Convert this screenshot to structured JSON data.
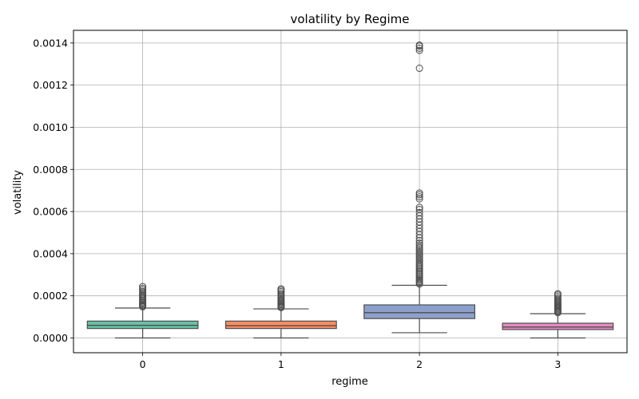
{
  "chart_data": {
    "type": "box",
    "title": "volatility by Regime",
    "xlabel": "regime",
    "ylabel": "volatility",
    "ylim": [
      -7e-05,
      0.00146
    ],
    "yticks": [
      0.0,
      0.0002,
      0.0004,
      0.0006,
      0.0008,
      0.001,
      0.0012,
      0.0014
    ],
    "ytick_labels": [
      "0.0000",
      "0.0002",
      "0.0004",
      "0.0006",
      "0.0008",
      "0.0010",
      "0.0012",
      "0.0014"
    ],
    "grid": true,
    "categories": [
      "0",
      "1",
      "2",
      "3"
    ],
    "boxes": [
      {
        "category": "0",
        "color": "#66c2a5",
        "whisker_low": 0.0,
        "q1": 4.5e-05,
        "median": 6e-05,
        "q3": 8e-05,
        "whisker_high": 0.000142,
        "outliers": [
          0.000148,
          0.000152,
          0.000157,
          0.000162,
          0.000167,
          0.000172,
          0.000178,
          0.000184,
          0.00019,
          0.000196,
          0.000202,
          0.000208,
          0.000214,
          0.00022,
          0.000228,
          0.000236,
          0.000244
        ]
      },
      {
        "category": "1",
        "color": "#fc8d62",
        "whisker_low": 0.0,
        "q1": 4.5e-05,
        "median": 5.8e-05,
        "q3": 8e-05,
        "whisker_high": 0.000138,
        "outliers": [
          0.000144,
          0.000148,
          0.000153,
          0.000158,
          0.000163,
          0.000168,
          0.000174,
          0.00018,
          0.000186,
          0.000192,
          0.000198,
          0.000205,
          0.000212,
          0.00022,
          0.000227,
          0.000233
        ]
      },
      {
        "category": "2",
        "color": "#8da0cb",
        "whisker_low": 2.5e-05,
        "q1": 9.2e-05,
        "median": 0.00012,
        "q3": 0.000157,
        "whisker_high": 0.00025,
        "outliers": [
          0.000256,
          0.000262,
          0.000268,
          0.000274,
          0.00028,
          0.000287,
          0.000294,
          0.000301,
          0.000308,
          0.000315,
          0.000322,
          0.000329,
          0.000336,
          0.000343,
          0.00035,
          0.000358,
          0.000366,
          0.000374,
          0.000382,
          0.00039,
          0.000398,
          0.000406,
          0.000414,
          0.000422,
          0.00043,
          0.00044,
          0.00045,
          0.000462,
          0.000475,
          0.00049,
          0.000505,
          0.00052,
          0.000535,
          0.00055,
          0.000565,
          0.00058,
          0.000595,
          0.00061,
          0.00062,
          0.00066,
          0.00067,
          0.00068,
          0.000688,
          0.00128,
          0.001365,
          0.001375,
          0.001385,
          0.00139
        ]
      },
      {
        "category": "3",
        "color": "#e78ac3",
        "whisker_low": 0.0,
        "q1": 4e-05,
        "median": 5.2e-05,
        "q3": 7e-05,
        "whisker_high": 0.000115,
        "outliers": [
          0.00012,
          0.000125,
          0.00013,
          0.000135,
          0.00014,
          0.000145,
          0.00015,
          0.000155,
          0.00016,
          0.000165,
          0.00017,
          0.000175,
          0.000181,
          0.000188,
          0.000196,
          0.000204,
          0.00021
        ]
      }
    ]
  }
}
